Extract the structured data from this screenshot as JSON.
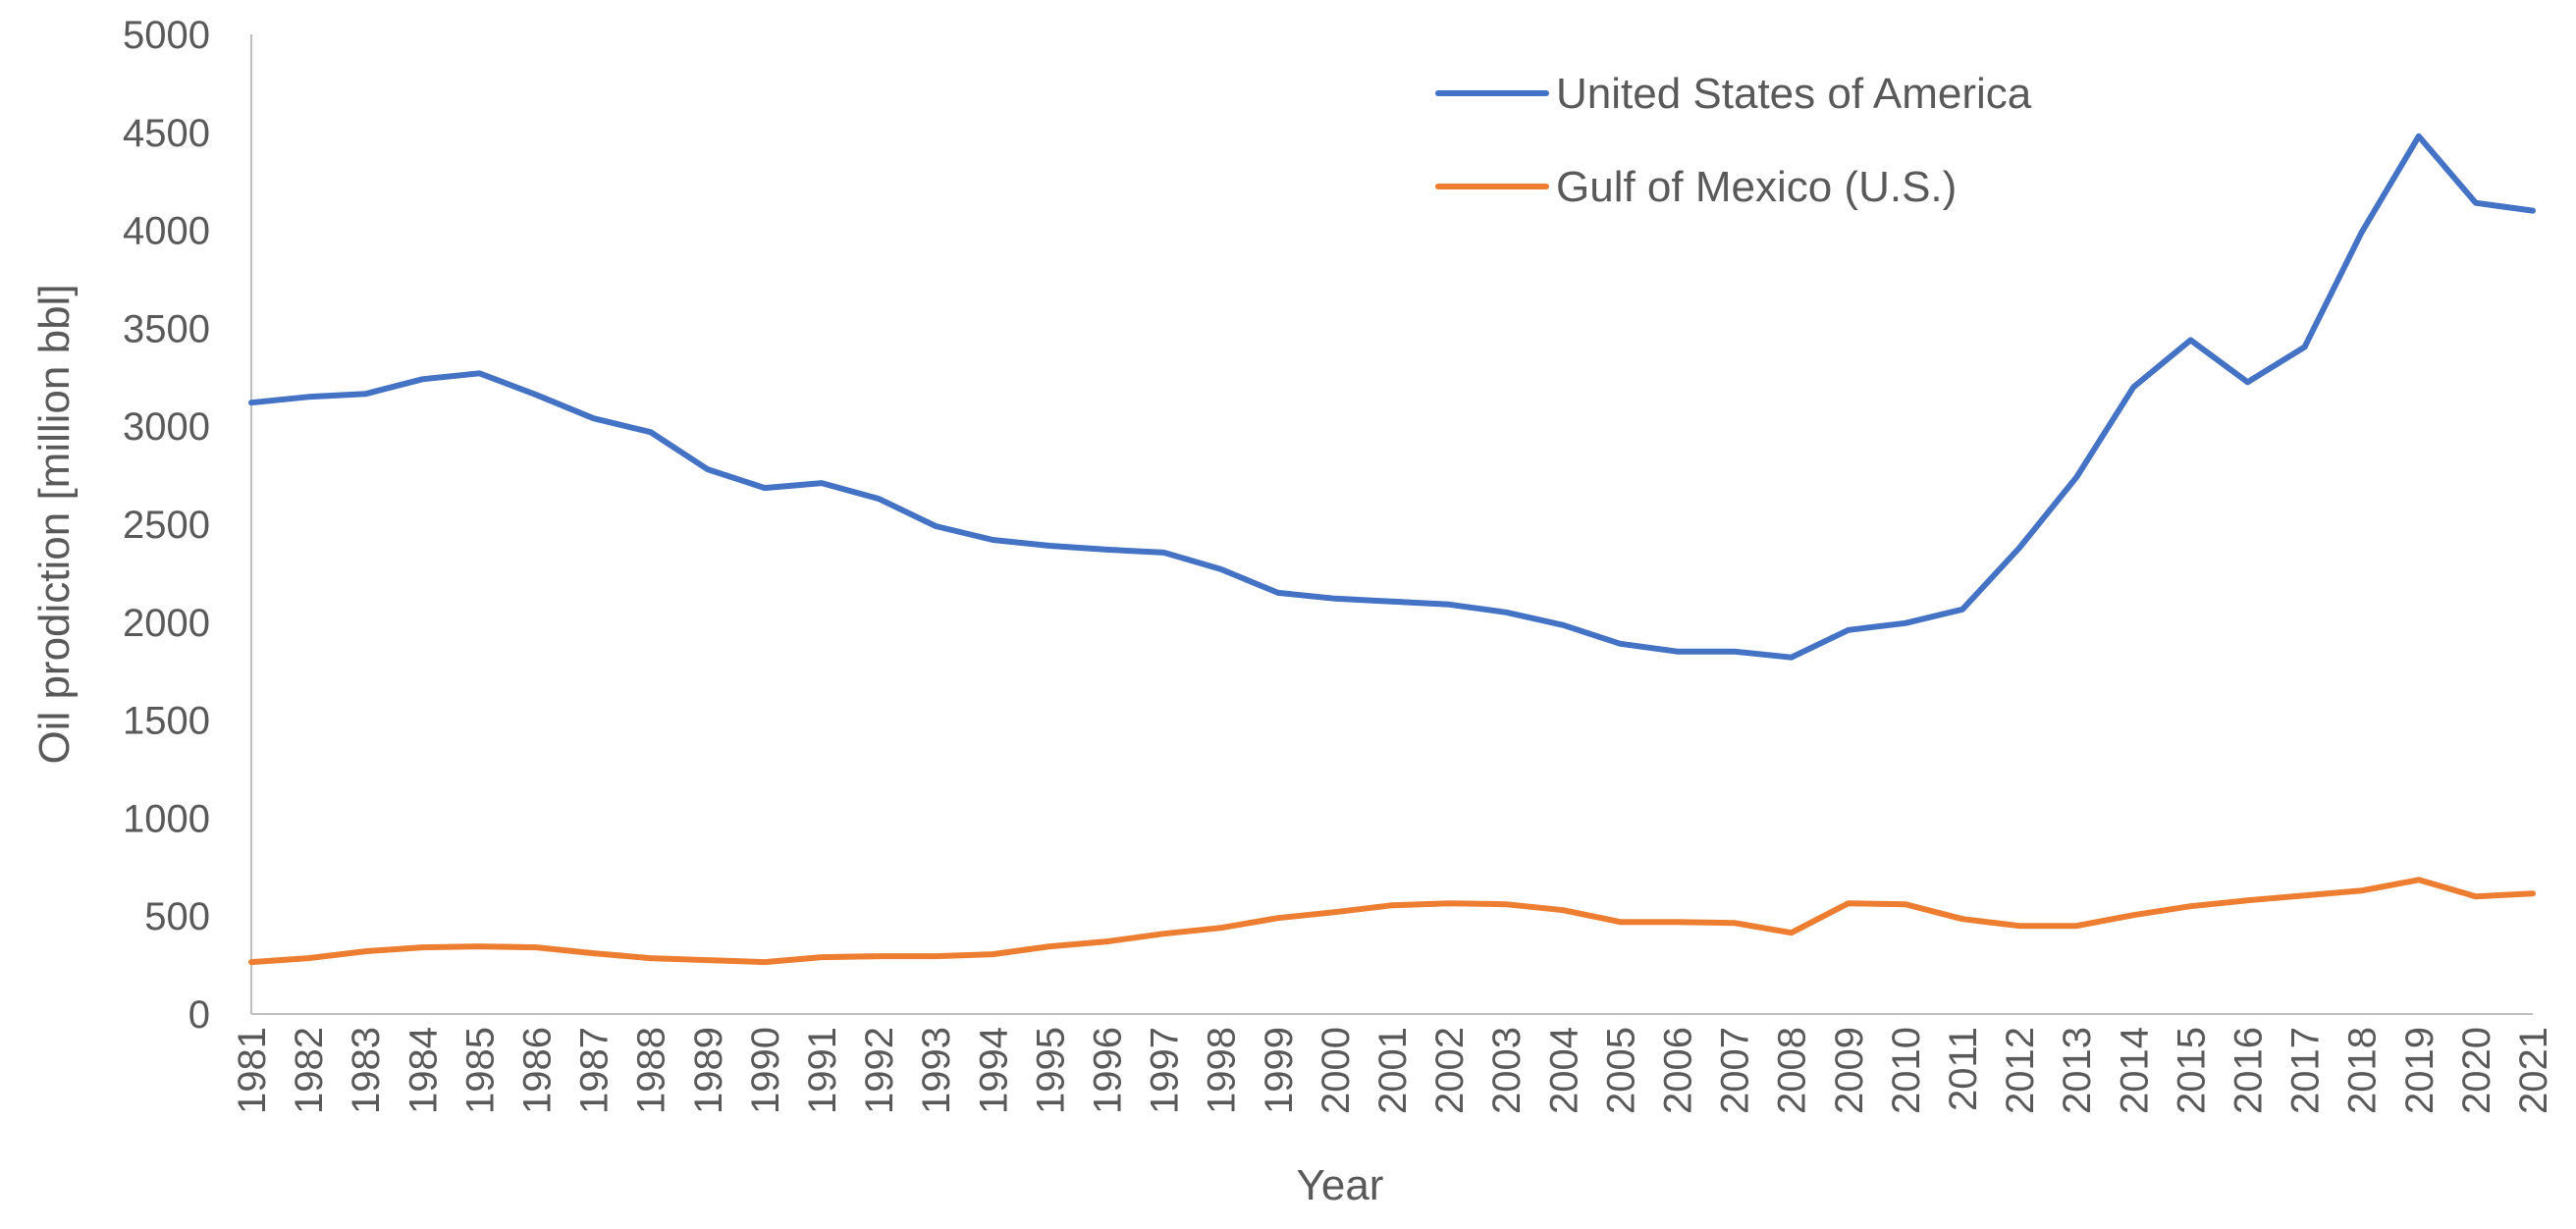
{
  "chart_data": {
    "type": "line",
    "title": "",
    "xlabel": "Year",
    "ylabel": "Oil prodiction [million bbl]",
    "ylim": [
      0,
      5000
    ],
    "yticks": [
      "0",
      "500",
      "1000",
      "1500",
      "2000",
      "2500",
      "3000",
      "3500",
      "4000",
      "4500",
      "5000"
    ],
    "grid": false,
    "legend_position": "top-right",
    "categories": [
      "1981",
      "1982",
      "1983",
      "1984",
      "1985",
      "1986",
      "1987",
      "1988",
      "1989",
      "1990",
      "1991",
      "1992",
      "1993",
      "1994",
      "1995",
      "1996",
      "1997",
      "1998",
      "1999",
      "2000",
      "2001",
      "2002",
      "2003",
      "2004",
      "2005",
      "2006",
      "2007",
      "2008",
      "2009",
      "2010",
      "2011",
      "2012",
      "2013",
      "2014",
      "2015",
      "2016",
      "2017",
      "2018",
      "2019",
      "2020",
      "2021"
    ],
    "series": [
      {
        "name": "United States of America",
        "color": "#4472c4",
        "values": [
          3120,
          3150,
          3165,
          3240,
          3270,
          3160,
          3040,
          2970,
          2780,
          2685,
          2710,
          2630,
          2490,
          2420,
          2390,
          2370,
          2355,
          2270,
          2150,
          2120,
          2105,
          2090,
          2050,
          1985,
          1890,
          1850,
          1850,
          1820,
          1960,
          1995,
          2065,
          2380,
          2740,
          3200,
          3440,
          3225,
          3405,
          3990,
          4480,
          4140,
          4100
        ]
      },
      {
        "name": "Gulf of Mexico (U.S.)",
        "color": "#ed7d31",
        "values": [
          265,
          285,
          320,
          340,
          345,
          340,
          310,
          285,
          275,
          265,
          290,
          295,
          295,
          305,
          345,
          370,
          410,
          440,
          490,
          520,
          555,
          565,
          560,
          530,
          470,
          470,
          465,
          415,
          565,
          560,
          485,
          450,
          450,
          505,
          550,
          580,
          605,
          630,
          685,
          600,
          615
        ]
      }
    ]
  }
}
